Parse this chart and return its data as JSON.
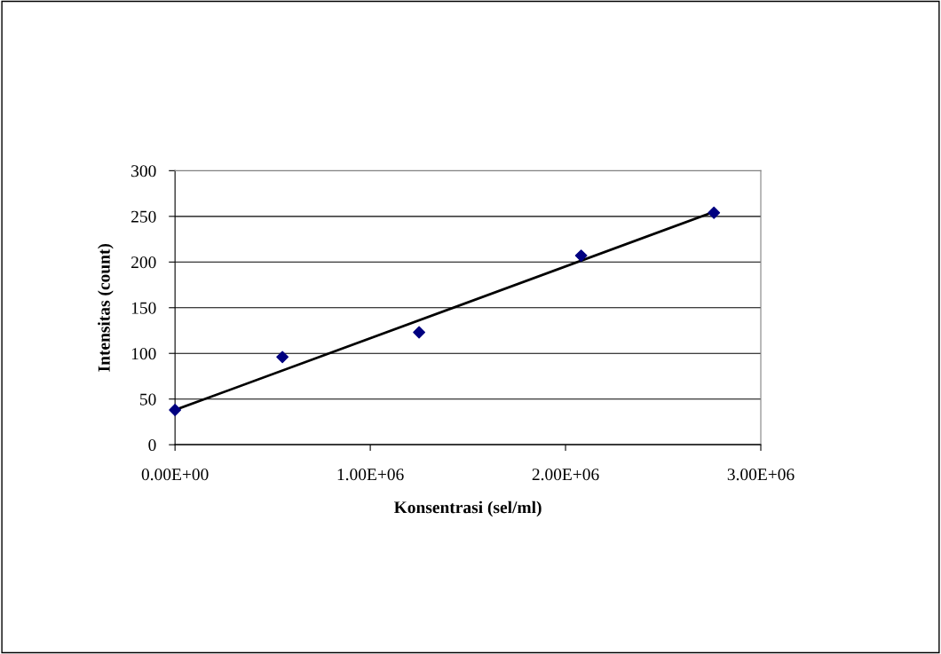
{
  "chart_data": {
    "type": "scatter",
    "xlabel": "Konsentrasi (sel/ml)",
    "ylabel": "Intensitas (count)",
    "x": [
      0,
      550000,
      1250000,
      2080000,
      2760000
    ],
    "series": [
      {
        "color": "#000080",
        "marker": "diamond",
        "values": [
          38,
          96,
          123,
          207,
          254
        ]
      },
      {
        "type": "line",
        "color": "#000000",
        "line_style": "solid",
        "marker": "none",
        "x": [
          0,
          2760000
        ],
        "values": [
          38,
          255
        ]
      }
    ],
    "xlim": [
      0,
      3000000
    ],
    "xticks": [
      {
        "value": 0,
        "label": "0.00E+00"
      },
      {
        "value": 1000000,
        "label": "1.00E+06"
      },
      {
        "value": 2000000,
        "label": "2.00E+06"
      },
      {
        "value": 3000000,
        "label": "3.00E+06"
      }
    ],
    "ylim": [
      0,
      300
    ],
    "yticks": [
      0,
      50,
      100,
      150,
      200,
      250,
      300
    ],
    "grid": "y",
    "legend": false
  }
}
